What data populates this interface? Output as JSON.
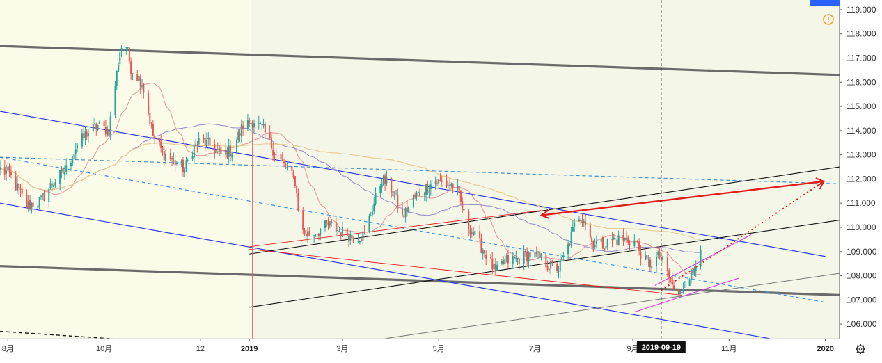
{
  "colors": {
    "plot_bg": "#fafbe9",
    "up": "#26a69a",
    "down": "#ef5350",
    "ma_fast": "#e99a9a",
    "ma_slow": "#9b8fc7",
    "ma_long": "#e8c98f",
    "channel_blue": "#2b39d8",
    "dashed_blue": "#3f8fe0",
    "thick_gray": "#6b6b6b",
    "black": "#111111",
    "red": "#e31c1c",
    "magenta": "#e040e0",
    "alert": "#f59b2b"
  },
  "icons": {
    "alert": "exclamation-circle-icon",
    "settings": "gear-icon"
  },
  "crosshair_date": "2019-09-19",
  "chart_data": {
    "type": "candlestick",
    "price_axis": {
      "range": [
        105.4,
        119.4
      ],
      "ticks": [
        "106.000",
        "107.000",
        "108.000",
        "109.000",
        "110.000",
        "111.000",
        "112.000",
        "113.000",
        "114.000",
        "115.000",
        "116.000",
        "117.000",
        "118.000",
        "119.000"
      ]
    },
    "time_axis": {
      "range": [
        "2018-07-27",
        "2020-01-10"
      ],
      "labels": [
        {
          "text": "8月",
          "date": "2018-08-01",
          "bold": false
        },
        {
          "text": "10月",
          "date": "2018-10-01",
          "bold": false
        },
        {
          "text": "12",
          "date": "2018-12-01",
          "bold": false
        },
        {
          "text": "2019",
          "date": "2019-01-01",
          "bold": true
        },
        {
          "text": "3月",
          "date": "2019-03-01",
          "bold": false
        },
        {
          "text": "5月",
          "date": "2019-05-01",
          "bold": false
        },
        {
          "text": "7月",
          "date": "2019-07-01",
          "bold": false
        },
        {
          "text": "9月",
          "date": "2019-09-01",
          "bold": false
        },
        {
          "text": "11月",
          "date": "2019-11-01",
          "bold": false
        },
        {
          "text": "2020",
          "date": "2020-01-01",
          "bold": true
        }
      ]
    },
    "price_path": [
      [
        "2018-07-27",
        112.4
      ],
      [
        "2018-08-02",
        112.2
      ],
      [
        "2018-08-13",
        110.9
      ],
      [
        "2018-08-22",
        111.1
      ],
      [
        "2018-08-29",
        111.8
      ],
      [
        "2018-09-07",
        112.4
      ],
      [
        "2018-09-13",
        113.3
      ],
      [
        "2018-09-20",
        113.9
      ],
      [
        "2018-09-27",
        114.2
      ],
      [
        "2018-10-04",
        114.0
      ],
      [
        "2018-10-11",
        117.3
      ],
      [
        "2018-10-14",
        117.8
      ],
      [
        "2018-10-18",
        116.6
      ],
      [
        "2018-10-25",
        116.0
      ],
      [
        "2018-11-01",
        113.8
      ],
      [
        "2018-11-07",
        113.1
      ],
      [
        "2018-11-15",
        112.7
      ],
      [
        "2018-11-21",
        112.4
      ],
      [
        "2018-11-26",
        113.2
      ],
      [
        "2018-12-01",
        113.6
      ],
      [
        "2018-12-07",
        113.4
      ],
      [
        "2018-12-14",
        113.0
      ],
      [
        "2018-12-21",
        113.2
      ],
      [
        "2018-12-28",
        114.2
      ],
      [
        "2019-01-04",
        114.4
      ],
      [
        "2019-01-10",
        114.0
      ],
      [
        "2019-01-18",
        113.0
      ],
      [
        "2019-01-25",
        112.4
      ],
      [
        "2019-01-30",
        111.9
      ],
      [
        "2019-02-03",
        109.8
      ],
      [
        "2019-02-10",
        109.7
      ],
      [
        "2019-02-20",
        110.1
      ],
      [
        "2019-03-01",
        109.8
      ],
      [
        "2019-03-08",
        109.6
      ],
      [
        "2019-03-15",
        109.7
      ],
      [
        "2019-03-20",
        110.8
      ],
      [
        "2019-03-26",
        112.0
      ],
      [
        "2019-04-01",
        111.6
      ],
      [
        "2019-04-08",
        110.4
      ],
      [
        "2019-04-15",
        111.2
      ],
      [
        "2019-04-22",
        111.6
      ],
      [
        "2019-04-29",
        111.9
      ],
      [
        "2019-05-06",
        111.8
      ],
      [
        "2019-05-12",
        111.7
      ],
      [
        "2019-05-18",
        110.3
      ],
      [
        "2019-05-25",
        109.5
      ],
      [
        "2019-06-01",
        108.8
      ],
      [
        "2019-06-06",
        108.1
      ],
      [
        "2019-06-12",
        108.6
      ],
      [
        "2019-06-20",
        108.7
      ],
      [
        "2019-06-28",
        108.9
      ],
      [
        "2019-07-05",
        108.7
      ],
      [
        "2019-07-10",
        108.4
      ],
      [
        "2019-07-16",
        108.3
      ],
      [
        "2019-07-22",
        109.2
      ],
      [
        "2019-07-28",
        110.5
      ],
      [
        "2019-08-01",
        110.4
      ],
      [
        "2019-08-06",
        109.4
      ],
      [
        "2019-08-13",
        109.3
      ],
      [
        "2019-08-20",
        109.5
      ],
      [
        "2019-08-27",
        109.5
      ],
      [
        "2019-09-03",
        109.4
      ],
      [
        "2019-09-08",
        108.6
      ],
      [
        "2019-09-12",
        108.5
      ],
      [
        "2019-09-18",
        108.8
      ],
      [
        "2019-09-22",
        108.3
      ],
      [
        "2019-09-26",
        107.6
      ],
      [
        "2019-09-30",
        107.1
      ],
      [
        "2019-10-02",
        107.4
      ],
      [
        "2019-10-05",
        108.0
      ],
      [
        "2019-10-09",
        108.1
      ],
      [
        "2019-10-12",
        108.9
      ],
      [
        "2019-10-14",
        109.3
      ]
    ],
    "lines": [
      {
        "name": "thick-top",
        "style": "thick",
        "from": [
          "2018-07-27",
          117.5
        ],
        "to": [
          "2020-01-10",
          116.3
        ]
      },
      {
        "name": "thick-bottom",
        "style": "thick",
        "from": [
          "2018-07-27",
          108.4
        ],
        "to": [
          "2020-01-10",
          107.2
        ]
      },
      {
        "name": "channel-upper",
        "style": "blue",
        "from": [
          "2018-07-27",
          114.8
        ],
        "to": [
          "2020-01-01",
          108.8
        ]
      },
      {
        "name": "channel-lower",
        "style": "blue",
        "from": [
          "2018-07-27",
          111.0
        ],
        "to": [
          "2020-01-01",
          105.0
        ]
      },
      {
        "name": "channel-mid",
        "style": "dashed-blue",
        "from": [
          "2018-07-27",
          112.9
        ],
        "to": [
          "2020-01-01",
          106.9
        ]
      },
      {
        "name": "dashed-flat",
        "style": "dashed-blue",
        "from": [
          "2018-07-27",
          112.9
        ],
        "to": [
          "2020-01-10",
          111.8
        ]
      },
      {
        "name": "black-upper",
        "style": "black",
        "from": [
          "2019-01-01",
          108.9
        ],
        "to": [
          "2020-01-10",
          112.5
        ]
      },
      {
        "name": "black-lower",
        "style": "black",
        "from": [
          "2019-01-01",
          106.7
        ],
        "to": [
          "2020-01-10",
          110.3
        ]
      },
      {
        "name": "gray-lower",
        "style": "gray",
        "from": [
          "2019-01-01",
          104.6
        ],
        "to": [
          "2020-01-10",
          108.1
        ]
      },
      {
        "name": "red-upper",
        "style": "red-thin",
        "from": [
          "2019-01-01",
          109.2
        ],
        "to": [
          "2019-07-05",
          110.7
        ]
      },
      {
        "name": "red-lower",
        "style": "red-thin",
        "from": [
          "2019-01-01",
          109.1
        ],
        "to": [
          "2019-10-02",
          107.2
        ]
      },
      {
        "name": "magenta-upper",
        "style": "magenta",
        "from": [
          "2019-09-15",
          107.6
        ],
        "to": [
          "2019-11-15",
          109.7
        ]
      },
      {
        "name": "magenta-lower",
        "style": "magenta",
        "from": [
          "2019-09-02",
          106.5
        ],
        "to": [
          "2019-11-07",
          107.9
        ]
      },
      {
        "name": "black-dashed-old",
        "style": "black-dashed",
        "from": [
          "2018-07-27",
          105.7
        ],
        "to": [
          "2018-12-15",
          105.1
        ]
      }
    ],
    "arrows": [
      {
        "name": "red-arrow",
        "style": "red",
        "from": [
          "2019-09-19",
          111.1
        ],
        "to": [
          "2019-12-31",
          111.9
        ],
        "head_at": "both"
      },
      {
        "name": "red-dotted-arrow",
        "style": "red-dotted",
        "from": [
          "2019-09-19",
          107.4
        ],
        "to": [
          "2019-12-31",
          111.9
        ],
        "head_at": "end"
      }
    ],
    "grid": false,
    "legend": "none"
  }
}
